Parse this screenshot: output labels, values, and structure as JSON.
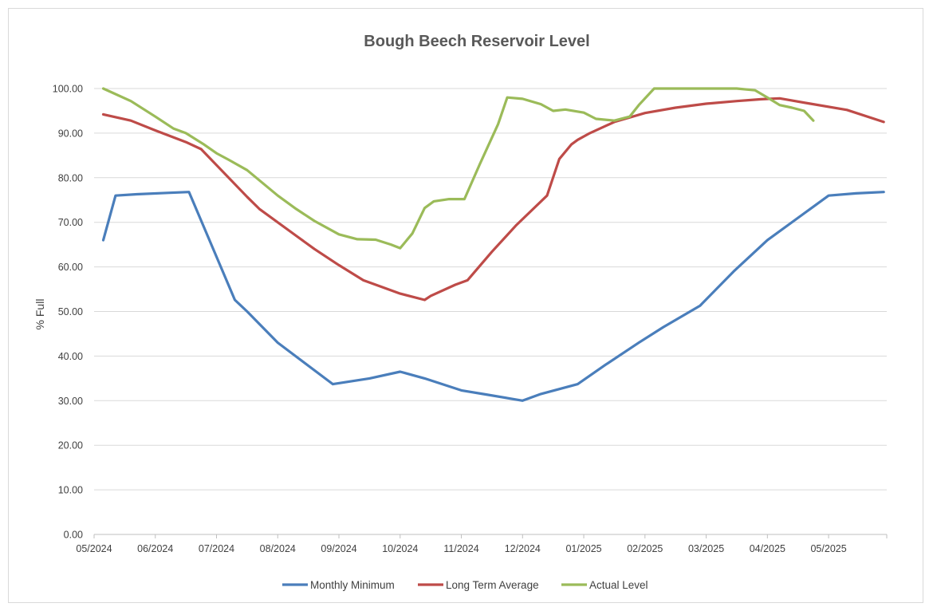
{
  "chart_data": {
    "type": "line",
    "title": "Bough Beech Reservoir Level",
    "xlabel": "",
    "ylabel": "% Full",
    "ylim": [
      0,
      100
    ],
    "yticks": [
      "0.00",
      "10.00",
      "20.00",
      "30.00",
      "40.00",
      "50.00",
      "60.00",
      "70.00",
      "80.00",
      "90.00",
      "100.00"
    ],
    "xticks": [
      "05/2024",
      "06/2024",
      "07/2024",
      "08/2024",
      "09/2024",
      "10/2024",
      "11/2024",
      "12/2024",
      "01/2025",
      "02/2025",
      "03/2025",
      "04/2025",
      "05/2025"
    ],
    "xlim": [
      0,
      12.95
    ],
    "grid": "horizontal",
    "legend_position": "bottom",
    "series": [
      {
        "name": "Monthly Minimum",
        "color": "#4a7ebb",
        "x": [
          0.15,
          0.35,
          0.7,
          1.2,
          1.55,
          2.3,
          2.5,
          3.0,
          3.9,
          4.5,
          5.0,
          5.4,
          6.0,
          6.4,
          7.0,
          7.3,
          7.9,
          8.35,
          8.9,
          9.3,
          9.9,
          10.45,
          11.0,
          11.6,
          12.0,
          12.45,
          12.9
        ],
        "values": [
          66.0,
          76.0,
          76.3,
          76.6,
          76.8,
          52.6,
          50.0,
          43.0,
          33.7,
          35.0,
          36.5,
          35.0,
          32.3,
          31.4,
          30.0,
          31.5,
          33.7,
          38.0,
          43.0,
          46.5,
          51.3,
          59.0,
          66.0,
          72.0,
          76.0,
          76.5,
          76.8
        ]
      },
      {
        "name": "Long Term Average",
        "color": "#be4b48",
        "x": [
          0.15,
          0.6,
          1.0,
          1.5,
          1.75,
          2.5,
          2.7,
          3.3,
          3.6,
          4.0,
          4.4,
          4.7,
          5.0,
          5.4,
          5.5,
          5.9,
          6.1,
          6.5,
          6.9,
          7.4,
          7.6,
          7.8,
          7.9,
          8.1,
          8.5,
          9.0,
          9.5,
          10.0,
          10.5,
          10.9,
          11.2,
          11.7,
          12.3,
          12.9
        ],
        "values": [
          94.2,
          92.8,
          90.6,
          88.0,
          86.4,
          75.7,
          73.0,
          67.0,
          64.0,
          60.4,
          57.0,
          55.5,
          54.0,
          52.6,
          53.5,
          56.0,
          57.0,
          63.4,
          69.4,
          76.0,
          84.2,
          87.5,
          88.5,
          90.0,
          92.5,
          94.5,
          95.7,
          96.6,
          97.2,
          97.6,
          97.8,
          96.6,
          95.2,
          92.5
        ]
      },
      {
        "name": "Actual Level",
        "color": "#9bbb59",
        "x": [
          0.15,
          0.6,
          1.0,
          1.3,
          1.5,
          1.8,
          2.0,
          2.2,
          2.5,
          3.0,
          3.3,
          3.6,
          4.0,
          4.3,
          4.6,
          4.85,
          5.0,
          5.2,
          5.4,
          5.55,
          5.8,
          6.05,
          6.3,
          6.6,
          6.75,
          7.0,
          7.3,
          7.5,
          7.7,
          8.0,
          8.2,
          8.5,
          8.75,
          8.9,
          9.15,
          9.3,
          9.5,
          10.0,
          10.5,
          10.8,
          11.0,
          11.2,
          11.4,
          11.6,
          11.75
        ],
        "values": [
          100.0,
          97.2,
          93.7,
          91.0,
          90.0,
          87.4,
          85.5,
          84.0,
          81.7,
          76.0,
          73.0,
          70.3,
          67.3,
          66.2,
          66.1,
          65.0,
          64.2,
          67.5,
          73.2,
          74.7,
          75.2,
          75.2,
          83.0,
          92.0,
          98.0,
          97.7,
          96.5,
          95.0,
          95.3,
          94.6,
          93.2,
          92.8,
          93.7,
          96.3,
          100.0,
          100.0,
          100.0,
          100.0,
          100.0,
          99.6,
          98.0,
          96.3,
          95.7,
          95.0,
          92.8
        ]
      }
    ]
  }
}
